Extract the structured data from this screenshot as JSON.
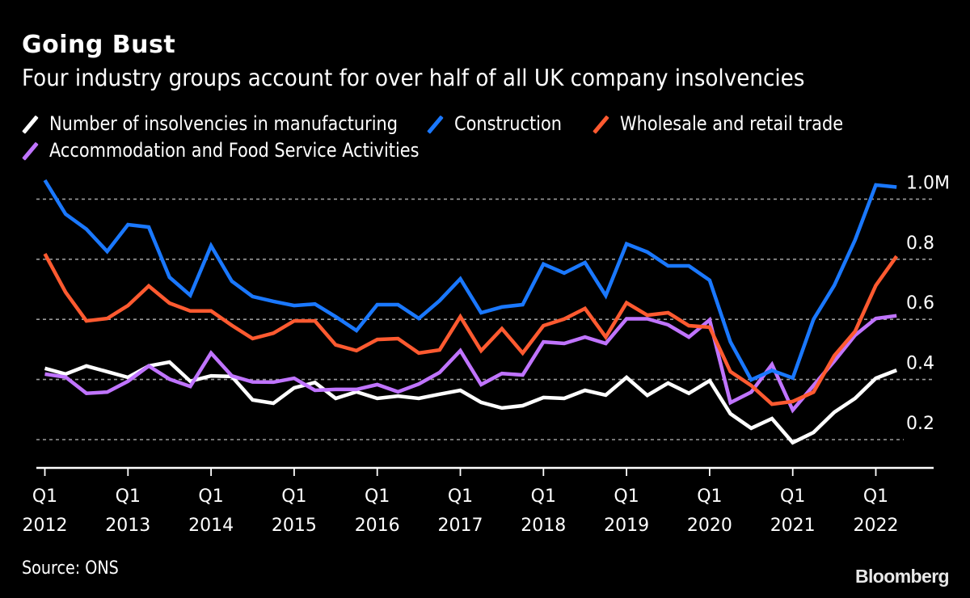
{
  "header": {
    "title": "Going Bust",
    "subtitle": "Four industry groups account for over half of all UK company insolvencies"
  },
  "footer": {
    "source": "Source: ONS",
    "brand": "Bloomberg"
  },
  "chart_data": {
    "type": "line",
    "title": "Going Bust",
    "subtitle": "Four industry groups account for over half of all UK company insolvencies",
    "xlabel": "",
    "ylabel": "",
    "x_range": [
      "Q1 2012",
      "Q2 2022"
    ],
    "ylim": [
      0.11,
      1.0
    ],
    "y_axis_side": "right",
    "y_ticks": [
      {
        "value": 1.0,
        "label": "1.0M"
      },
      {
        "value": 0.8,
        "label": "0.8"
      },
      {
        "value": 0.6,
        "label": "0.6"
      },
      {
        "value": 0.4,
        "label": "0.4"
      },
      {
        "value": 0.2,
        "label": "0.2"
      }
    ],
    "x_ticks": [
      {
        "index": 0,
        "line1": "Q1",
        "line2": "2012"
      },
      {
        "index": 4,
        "line1": "Q1",
        "line2": "2013"
      },
      {
        "index": 8,
        "line1": "Q1",
        "line2": "2014"
      },
      {
        "index": 12,
        "line1": "Q1",
        "line2": "2015"
      },
      {
        "index": 16,
        "line1": "Q1",
        "line2": "2016"
      },
      {
        "index": 20,
        "line1": "Q1",
        "line2": "2017"
      },
      {
        "index": 24,
        "line1": "Q1",
        "line2": "2018"
      },
      {
        "index": 28,
        "line1": "Q1",
        "line2": "2019"
      },
      {
        "index": 32,
        "line1": "Q1",
        "line2": "2020"
      },
      {
        "index": 36,
        "line1": "Q1",
        "line2": "2021"
      },
      {
        "index": 40,
        "line1": "Q1",
        "line2": "2022"
      }
    ],
    "grid": "horizontal-dotted",
    "legend_position": "top-left",
    "categories": [
      "Q1 2012",
      "Q2 2012",
      "Q3 2012",
      "Q4 2012",
      "Q1 2013",
      "Q2 2013",
      "Q3 2013",
      "Q4 2013",
      "Q1 2014",
      "Q2 2014",
      "Q3 2014",
      "Q4 2014",
      "Q1 2015",
      "Q2 2015",
      "Q3 2015",
      "Q4 2015",
      "Q1 2016",
      "Q2 2016",
      "Q3 2016",
      "Q4 2016",
      "Q1 2017",
      "Q2 2017",
      "Q3 2017",
      "Q4 2017",
      "Q1 2018",
      "Q2 2018",
      "Q3 2018",
      "Q4 2018",
      "Q1 2019",
      "Q2 2019",
      "Q3 2019",
      "Q4 2019",
      "Q1 2020",
      "Q2 2020",
      "Q3 2020",
      "Q4 2020",
      "Q1 2021",
      "Q2 2021",
      "Q3 2021",
      "Q4 2021",
      "Q1 2022",
      "Q2 2022"
    ],
    "series": [
      {
        "key": "manufacturing",
        "name": "Number of insolvencies in manufacturing",
        "color": "#ffffff",
        "values": [
          0.437,
          0.418,
          0.445,
          0.426,
          0.407,
          0.445,
          0.458,
          0.394,
          0.412,
          0.41,
          0.332,
          0.321,
          0.372,
          0.39,
          0.337,
          0.359,
          0.337,
          0.345,
          0.337,
          0.351,
          0.364,
          0.324,
          0.305,
          0.313,
          0.34,
          0.337,
          0.364,
          0.348,
          0.407,
          0.347,
          0.388,
          0.354,
          0.396,
          0.286,
          0.238,
          0.27,
          0.19,
          0.224,
          0.291,
          0.337,
          0.404,
          0.431
        ]
      },
      {
        "key": "construction",
        "name": "Construction",
        "color": "#1a78ff",
        "values": [
          1.063,
          0.95,
          0.9,
          0.826,
          0.915,
          0.907,
          0.74,
          0.68,
          0.845,
          0.727,
          0.676,
          0.66,
          0.646,
          0.651,
          0.609,
          0.563,
          0.649,
          0.649,
          0.603,
          0.662,
          0.735,
          0.622,
          0.641,
          0.649,
          0.784,
          0.754,
          0.789,
          0.679,
          0.851,
          0.824,
          0.778,
          0.778,
          0.73,
          0.525,
          0.399,
          0.43,
          0.405,
          0.6,
          0.713,
          0.864,
          1.047,
          1.04
        ]
      },
      {
        "key": "wholesale",
        "name": "Wholesale and retail trade",
        "color": "#ff5a30",
        "values": [
          0.818,
          0.69,
          0.595,
          0.603,
          0.646,
          0.711,
          0.654,
          0.628,
          0.628,
          0.58,
          0.536,
          0.554,
          0.595,
          0.595,
          0.515,
          0.496,
          0.533,
          0.536,
          0.488,
          0.498,
          0.609,
          0.496,
          0.569,
          0.488,
          0.579,
          0.601,
          0.636,
          0.541,
          0.655,
          0.614,
          0.622,
          0.579,
          0.574,
          0.426,
          0.38,
          0.318,
          0.327,
          0.358,
          0.479,
          0.56,
          0.713,
          0.81
        ]
      },
      {
        "key": "accommodation",
        "name": "Accommodation and Food Service Activities",
        "color": "#c074ff",
        "values": [
          0.418,
          0.408,
          0.354,
          0.358,
          0.394,
          0.445,
          0.401,
          0.377,
          0.488,
          0.412,
          0.392,
          0.391,
          0.404,
          0.364,
          0.367,
          0.367,
          0.383,
          0.359,
          0.385,
          0.423,
          0.496,
          0.383,
          0.42,
          0.415,
          0.525,
          0.52,
          0.541,
          0.52,
          0.602,
          0.602,
          0.582,
          0.541,
          0.598,
          0.323,
          0.358,
          0.45,
          0.298,
          0.38,
          0.461,
          0.547,
          0.603,
          0.612
        ]
      }
    ]
  }
}
